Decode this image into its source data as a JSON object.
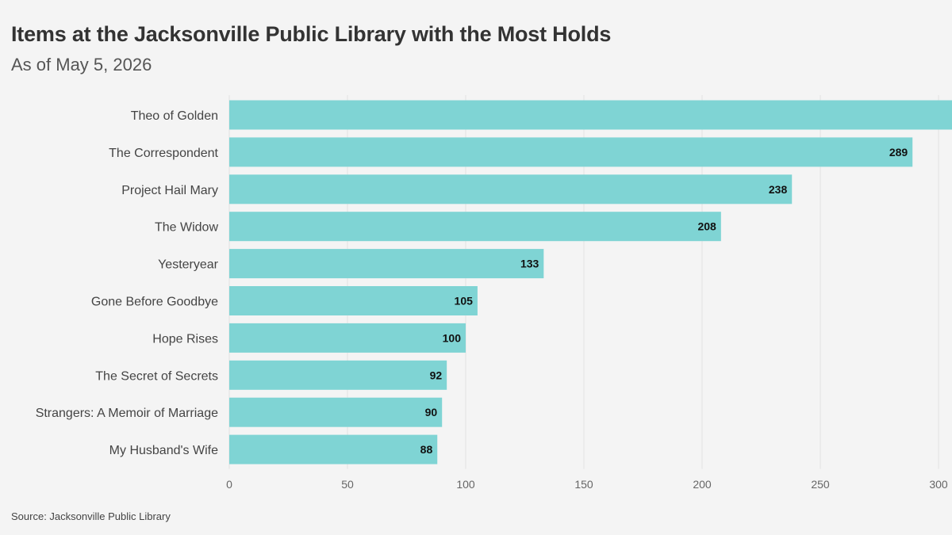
{
  "title": "Items at the Jacksonville Public Library with the Most Holds",
  "subtitle": "As of May 5, 2026",
  "source": "Source: Jacksonville Public Library",
  "colors": {
    "bar": "#7fd4d4",
    "grid": "#e2e2e2",
    "background": "#f4f4f4"
  },
  "chart_data": {
    "type": "bar",
    "orientation": "horizontal",
    "categories": [
      "Theo of Golden",
      "The Correspondent",
      "Project Hail Mary",
      "The Widow",
      "Yesteryear",
      "Gone Before Goodbye",
      "Hope Rises",
      "The Secret of Secrets",
      "Strangers: A Memoir of Marriage",
      "My Husband's Wife"
    ],
    "values": [
      310,
      289,
      238,
      208,
      133,
      105,
      100,
      92,
      90,
      88
    ],
    "value_labels": [
      "",
      "289",
      "238",
      "208",
      "133",
      "105",
      "100",
      "92",
      "90",
      "88"
    ],
    "title": "Items at the Jacksonville Public Library with the Most Holds",
    "subtitle": "As of May 5, 2026",
    "xlabel": "",
    "ylabel": "",
    "xlim": [
      0,
      300
    ],
    "x_ticks": [
      0,
      50,
      100,
      150,
      200,
      250,
      300
    ],
    "x_tick_labels": [
      "0",
      "50",
      "100",
      "150",
      "200",
      "250",
      "300"
    ],
    "grid": "vertical"
  }
}
